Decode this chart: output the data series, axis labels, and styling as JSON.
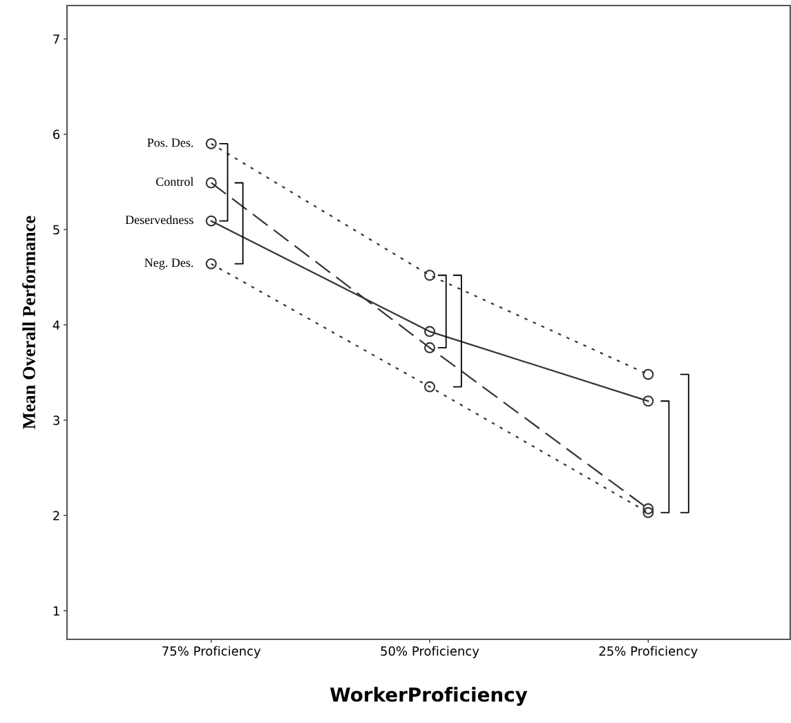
{
  "chart_data": {
    "type": "line",
    "xlabel": "WorkerProficiency",
    "ylabel": "Mean Overall Performance",
    "categories": [
      "75% Proficiency",
      "50% Proficiency",
      "25% Proficiency"
    ],
    "series": [
      {
        "name": "Pos. Des.",
        "color": "#333333",
        "line_style": "dotted",
        "values": [
          5.9,
          4.52,
          3.48
        ]
      },
      {
        "name": "Control",
        "color": "#333333",
        "line_style": "dashed",
        "values": [
          5.49,
          3.76,
          2.07
        ]
      },
      {
        "name": "Deservedness",
        "color": "#333333",
        "line_style": "solid",
        "values": [
          5.09,
          3.93,
          3.2
        ]
      },
      {
        "name": "Neg. Des.",
        "color": "#333333",
        "line_style": "dotted",
        "values": [
          4.64,
          3.35,
          2.03
        ]
      }
    ],
    "marker": "circle",
    "ylim": [
      0.7,
      7.35
    ],
    "yticks": [
      1,
      2,
      3,
      4,
      5,
      6,
      7
    ],
    "grid": false,
    "legend": false
  }
}
